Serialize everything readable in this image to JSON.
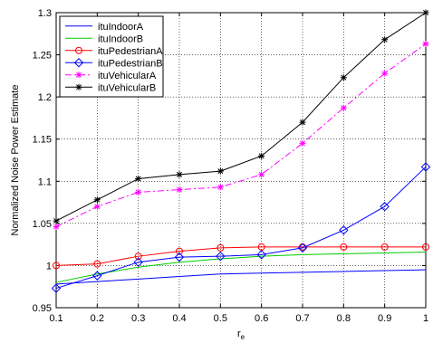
{
  "chart_data": {
    "type": "line",
    "title": "",
    "xlabel": "r",
    "xlabel_subscript": "e",
    "ylabel": "Normalized Noise Power Estimate",
    "x": [
      0.1,
      0.2,
      0.3,
      0.4,
      0.5,
      0.6,
      0.7,
      0.8,
      0.9,
      1.0
    ],
    "xlim": [
      0.1,
      1.0
    ],
    "ylim": [
      0.95,
      1.3
    ],
    "xticks": [
      "0.1",
      "0.2",
      "0.3",
      "0.4",
      "0.5",
      "0.6",
      "0.7",
      "0.8",
      "0.9",
      "1"
    ],
    "yticks": [
      "0.95",
      "1",
      "1.05",
      "1.1",
      "1.15",
      "1.2",
      "1.25",
      "1.3"
    ],
    "grid": true,
    "legend_position": "top-left",
    "series": [
      {
        "name": "ituIndoorA",
        "color": "#0000ff",
        "dash": "solid",
        "marker": "none",
        "values": [
          0.978,
          0.981,
          0.984,
          0.987,
          0.99,
          0.991,
          0.992,
          0.993,
          0.994,
          0.995
        ]
      },
      {
        "name": "ituIndoorB",
        "color": "#00cc00",
        "dash": "solid",
        "marker": "none",
        "values": [
          0.98,
          0.99,
          0.998,
          1.004,
          1.008,
          1.011,
          1.013,
          1.014,
          1.015,
          1.016
        ]
      },
      {
        "name": "ituPedestrianA",
        "color": "#ff0000",
        "dash": "solid",
        "marker": "circle",
        "values": [
          1.0,
          1.002,
          1.011,
          1.017,
          1.021,
          1.022,
          1.022,
          1.022,
          1.022,
          1.022
        ]
      },
      {
        "name": "ituPedestrianB",
        "color": "#0000ff",
        "dash": "solid",
        "marker": "diamond",
        "values": [
          0.973,
          0.988,
          1.004,
          1.01,
          1.011,
          1.013,
          1.021,
          1.042,
          1.07,
          1.117
        ]
      },
      {
        "name": "ituVehicularA",
        "color": "#ff00ff",
        "dash": "dashdot",
        "marker": "star",
        "values": [
          1.046,
          1.07,
          1.087,
          1.09,
          1.093,
          1.108,
          1.145,
          1.187,
          1.228,
          1.263
        ]
      },
      {
        "name": "ituVehicularB",
        "color": "#000000",
        "dash": "solid",
        "marker": "star",
        "values": [
          1.053,
          1.078,
          1.103,
          1.108,
          1.112,
          1.13,
          1.17,
          1.223,
          1.268,
          1.3
        ]
      }
    ]
  }
}
